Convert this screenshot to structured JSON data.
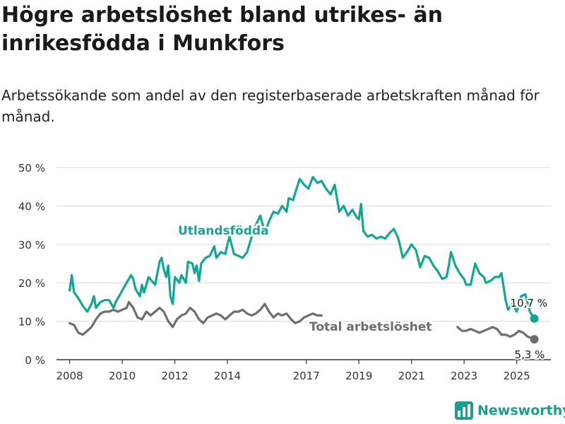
{
  "title": "Högre arbetslöshet bland utrikes- än inrikesfödda i Munkfors",
  "subtitle": "Arbetssökande som andel av den registerbaserade arbetskraften månad för månad.",
  "brand": {
    "name": "Newsworthy",
    "icon": "bar-chart-logo-icon"
  },
  "colors": {
    "utlandsfodda": "#13a596",
    "total": "#6d6d72",
    "grid": "#d9d9d9",
    "axis": "#333333"
  },
  "chart_data": {
    "type": "line",
    "ylim": [
      0,
      50
    ],
    "y_ticks": [
      0,
      10,
      20,
      30,
      40,
      50
    ],
    "y_tick_labels": [
      "0 %",
      "10 %",
      "20 %",
      "30 %",
      "40 %",
      "50 %"
    ],
    "x_ticks": [
      2008,
      2010,
      2012,
      2014,
      2017,
      2019,
      2021,
      2023,
      2025
    ],
    "x_tick_labels": [
      "2008",
      "2010",
      "2012",
      "2014",
      "2017",
      "2019",
      "2021",
      "2023",
      "2025"
    ],
    "series": [
      {
        "name": "Utlandsfödda",
        "color": "#13a596",
        "end_label": "10,7 %",
        "points": [
          [
            2008.0,
            18.0
          ],
          [
            2008.08,
            22.0
          ],
          [
            2008.17,
            17.5
          ],
          [
            2008.33,
            16.0
          ],
          [
            2008.5,
            14.0
          ],
          [
            2008.67,
            12.5
          ],
          [
            2008.83,
            14.5
          ],
          [
            2008.92,
            16.5
          ],
          [
            2009.0,
            13.5
          ],
          [
            2009.17,
            15.0
          ],
          [
            2009.33,
            15.5
          ],
          [
            2009.5,
            15.5
          ],
          [
            2009.67,
            13.5
          ],
          [
            2009.75,
            15.0
          ],
          [
            2009.92,
            17.0
          ],
          [
            2010.08,
            19.0
          ],
          [
            2010.25,
            21.0
          ],
          [
            2010.33,
            22.0
          ],
          [
            2010.42,
            21.0
          ],
          [
            2010.5,
            18.5
          ],
          [
            2010.67,
            16.5
          ],
          [
            2010.75,
            19.5
          ],
          [
            2010.83,
            17.5
          ],
          [
            2011.0,
            21.5
          ],
          [
            2011.25,
            19.5
          ],
          [
            2011.42,
            25.5
          ],
          [
            2011.5,
            26.5
          ],
          [
            2011.58,
            23.5
          ],
          [
            2011.67,
            21.5
          ],
          [
            2011.75,
            24.5
          ],
          [
            2011.83,
            16.5
          ],
          [
            2011.92,
            14.5
          ],
          [
            2012.0,
            21.5
          ],
          [
            2012.17,
            20.0
          ],
          [
            2012.25,
            22.0
          ],
          [
            2012.42,
            20.0
          ],
          [
            2012.5,
            25.5
          ],
          [
            2012.67,
            25.0
          ],
          [
            2012.75,
            22.5
          ],
          [
            2012.83,
            24.5
          ],
          [
            2012.92,
            20.5
          ],
          [
            2013.0,
            25.0
          ],
          [
            2013.17,
            26.5
          ],
          [
            2013.33,
            27.0
          ],
          [
            2013.5,
            29.5
          ],
          [
            2013.58,
            26.5
          ],
          [
            2013.75,
            28.0
          ],
          [
            2013.92,
            27.5
          ],
          [
            2014.0,
            30.0
          ],
          [
            2014.08,
            32.0
          ],
          [
            2014.25,
            27.5
          ],
          [
            2014.42,
            27.0
          ],
          [
            2014.58,
            26.5
          ],
          [
            2014.75,
            28.0
          ],
          [
            2014.92,
            32.0
          ],
          [
            2015.08,
            35.0
          ],
          [
            2015.25,
            37.5
          ],
          [
            2015.42,
            33.0
          ],
          [
            2015.58,
            36.0
          ],
          [
            2015.75,
            38.5
          ],
          [
            2015.92,
            38.0
          ],
          [
            2016.08,
            40.0
          ],
          [
            2016.25,
            38.5
          ],
          [
            2016.33,
            42.0
          ],
          [
            2016.5,
            41.5
          ],
          [
            2016.58,
            43.5
          ],
          [
            2016.75,
            47.0
          ],
          [
            2016.92,
            45.5
          ],
          [
            2017.08,
            44.5
          ],
          [
            2017.25,
            47.5
          ],
          [
            2017.42,
            46.0
          ],
          [
            2017.58,
            46.5
          ],
          [
            2017.75,
            44.5
          ],
          [
            2017.92,
            43.0
          ],
          [
            2018.08,
            45.5
          ],
          [
            2018.25,
            38.5
          ],
          [
            2018.42,
            40.0
          ],
          [
            2018.58,
            37.5
          ],
          [
            2018.75,
            39.0
          ],
          [
            2018.92,
            37.0
          ],
          [
            2019.0,
            36.5
          ],
          [
            2019.08,
            40.5
          ],
          [
            2019.17,
            33.5
          ],
          [
            2019.33,
            32.0
          ],
          [
            2019.5,
            32.5
          ],
          [
            2019.67,
            31.5
          ],
          [
            2019.83,
            32.0
          ],
          [
            2020.0,
            31.5
          ],
          [
            2020.17,
            33.0
          ],
          [
            2020.33,
            34.0
          ],
          [
            2020.5,
            31.5
          ],
          [
            2020.67,
            26.5
          ],
          [
            2020.83,
            28.0
          ],
          [
            2021.0,
            30.0
          ],
          [
            2021.17,
            28.5
          ],
          [
            2021.33,
            24.0
          ],
          [
            2021.5,
            27.0
          ],
          [
            2021.67,
            26.5
          ],
          [
            2021.83,
            24.5
          ],
          [
            2022.0,
            23.0
          ],
          [
            2022.17,
            21.0
          ],
          [
            2022.33,
            21.5
          ],
          [
            2022.42,
            24.5
          ],
          [
            2022.5,
            28.0
          ],
          [
            2022.67,
            24.5
          ],
          [
            2022.83,
            22.5
          ],
          [
            2023.0,
            21.0
          ],
          [
            2023.08,
            19.5
          ],
          [
            2023.25,
            19.5
          ],
          [
            2023.42,
            25.0
          ],
          [
            2023.58,
            22.5
          ],
          [
            2023.75,
            21.5
          ],
          [
            2023.83,
            20.0
          ],
          [
            2024.0,
            20.5
          ],
          [
            2024.17,
            21.5
          ],
          [
            2024.33,
            21.5
          ],
          [
            2024.42,
            22.5
          ],
          [
            2024.58,
            15.5
          ],
          [
            2024.67,
            13.0
          ],
          [
            2024.83,
            14.5
          ],
          [
            2025.0,
            12.5
          ],
          [
            2025.17,
            16.5
          ],
          [
            2025.33,
            17.0
          ],
          [
            2025.5,
            12.5
          ],
          [
            2025.67,
            10.7
          ]
        ]
      },
      {
        "name": "Total arbetslöshet",
        "color": "#6d6d72",
        "end_label": "5,3 %",
        "points": [
          [
            2008.0,
            9.5
          ],
          [
            2008.17,
            9.0
          ],
          [
            2008.33,
            7.0
          ],
          [
            2008.5,
            6.5
          ],
          [
            2008.67,
            7.5
          ],
          [
            2008.83,
            8.5
          ],
          [
            2009.0,
            10.5
          ],
          [
            2009.17,
            12.0
          ],
          [
            2009.33,
            12.5
          ],
          [
            2009.5,
            12.5
          ],
          [
            2009.67,
            13.0
          ],
          [
            2009.83,
            12.5
          ],
          [
            2010.0,
            13.0
          ],
          [
            2010.17,
            13.5
          ],
          [
            2010.25,
            15.0
          ],
          [
            2010.42,
            13.5
          ],
          [
            2010.58,
            11.0
          ],
          [
            2010.75,
            10.5
          ],
          [
            2010.92,
            12.5
          ],
          [
            2011.08,
            11.5
          ],
          [
            2011.25,
            12.5
          ],
          [
            2011.42,
            13.5
          ],
          [
            2011.58,
            12.5
          ],
          [
            2011.75,
            10.0
          ],
          [
            2011.92,
            8.5
          ],
          [
            2012.08,
            10.5
          ],
          [
            2012.25,
            11.5
          ],
          [
            2012.42,
            12.0
          ],
          [
            2012.58,
            13.5
          ],
          [
            2012.75,
            12.5
          ],
          [
            2012.92,
            10.5
          ],
          [
            2013.08,
            9.5
          ],
          [
            2013.25,
            11.0
          ],
          [
            2013.42,
            11.5
          ],
          [
            2013.58,
            12.0
          ],
          [
            2013.75,
            11.5
          ],
          [
            2013.92,
            10.5
          ],
          [
            2014.08,
            11.5
          ],
          [
            2014.25,
            12.5
          ],
          [
            2014.42,
            12.5
          ],
          [
            2014.58,
            13.0
          ],
          [
            2014.75,
            12.0
          ],
          [
            2014.92,
            11.5
          ],
          [
            2015.08,
            12.0
          ],
          [
            2015.25,
            13.0
          ],
          [
            2015.42,
            14.5
          ],
          [
            2015.58,
            12.5
          ],
          [
            2015.75,
            11.0
          ],
          [
            2015.92,
            12.0
          ],
          [
            2016.08,
            11.5
          ],
          [
            2016.25,
            12.0
          ],
          [
            2016.42,
            10.5
          ],
          [
            2016.58,
            9.5
          ],
          [
            2016.75,
            10.0
          ],
          [
            2016.92,
            11.0
          ],
          [
            2017.08,
            11.5
          ],
          [
            2017.25,
            12.0
          ],
          [
            2017.42,
            11.5
          ],
          [
            2017.58,
            11.5
          ],
          null,
          [
            2022.75,
            8.5
          ],
          [
            2022.92,
            7.5
          ],
          [
            2023.08,
            7.5
          ],
          [
            2023.25,
            8.0
          ],
          [
            2023.42,
            7.5
          ],
          [
            2023.58,
            7.0
          ],
          [
            2023.75,
            7.5
          ],
          [
            2023.92,
            8.0
          ],
          [
            2024.08,
            8.5
          ],
          [
            2024.25,
            8.0
          ],
          [
            2024.42,
            6.5
          ],
          [
            2024.58,
            6.5
          ],
          [
            2024.75,
            6.0
          ],
          [
            2024.92,
            6.5
          ],
          [
            2025.08,
            7.5
          ],
          [
            2025.25,
            7.0
          ],
          [
            2025.42,
            6.0
          ],
          [
            2025.67,
            5.3
          ]
        ]
      }
    ],
    "annotations": [
      {
        "text": "Utlandsfödda",
        "series": 0
      },
      {
        "text": "Total arbetslöshet",
        "series": 1
      }
    ]
  }
}
